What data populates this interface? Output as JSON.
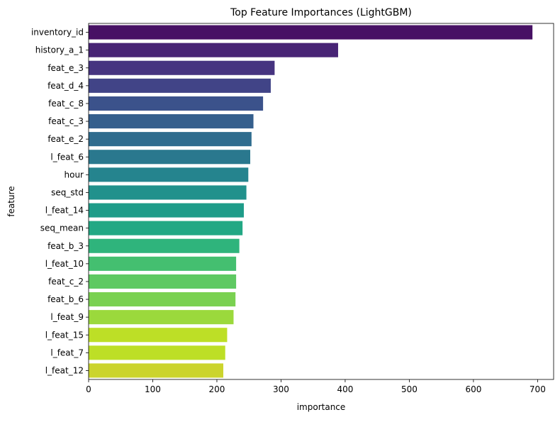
{
  "chart_data": {
    "type": "bar",
    "orientation": "horizontal",
    "title": "Top Feature Importances (LightGBM)",
    "xlabel": "importance",
    "ylabel": "feature",
    "xlim": [
      0,
      725
    ],
    "xticks": [
      0,
      100,
      200,
      300,
      400,
      500,
      600,
      700
    ],
    "grid": false,
    "legend": "none",
    "colormap": "viridis",
    "categories": [
      "inventory_id",
      "history_a_1",
      "feat_e_3",
      "feat_d_4",
      "feat_c_8",
      "feat_c_3",
      "feat_e_2",
      "l_feat_6",
      "hour",
      "seq_std",
      "l_feat_14",
      "seq_mean",
      "feat_b_3",
      "l_feat_10",
      "feat_c_2",
      "feat_b_6",
      "l_feat_9",
      "l_feat_15",
      "l_feat_7",
      "l_feat_12"
    ],
    "values": [
      692,
      389,
      290,
      284,
      272,
      257,
      254,
      252,
      249,
      246,
      242,
      240,
      235,
      230,
      230,
      229,
      226,
      216,
      213,
      210
    ],
    "colors": [
      "#471164",
      "#482475",
      "#463480",
      "#414487",
      "#3b528b",
      "#355f8d",
      "#2f6c8e",
      "#2a788e",
      "#25848e",
      "#21918c",
      "#1e9c89",
      "#22a884",
      "#2fb47c",
      "#44bf70",
      "#5ec962",
      "#7ad151",
      "#9bd93c",
      "#bddf26",
      "#bddf26",
      "#cbd42d"
    ]
  }
}
